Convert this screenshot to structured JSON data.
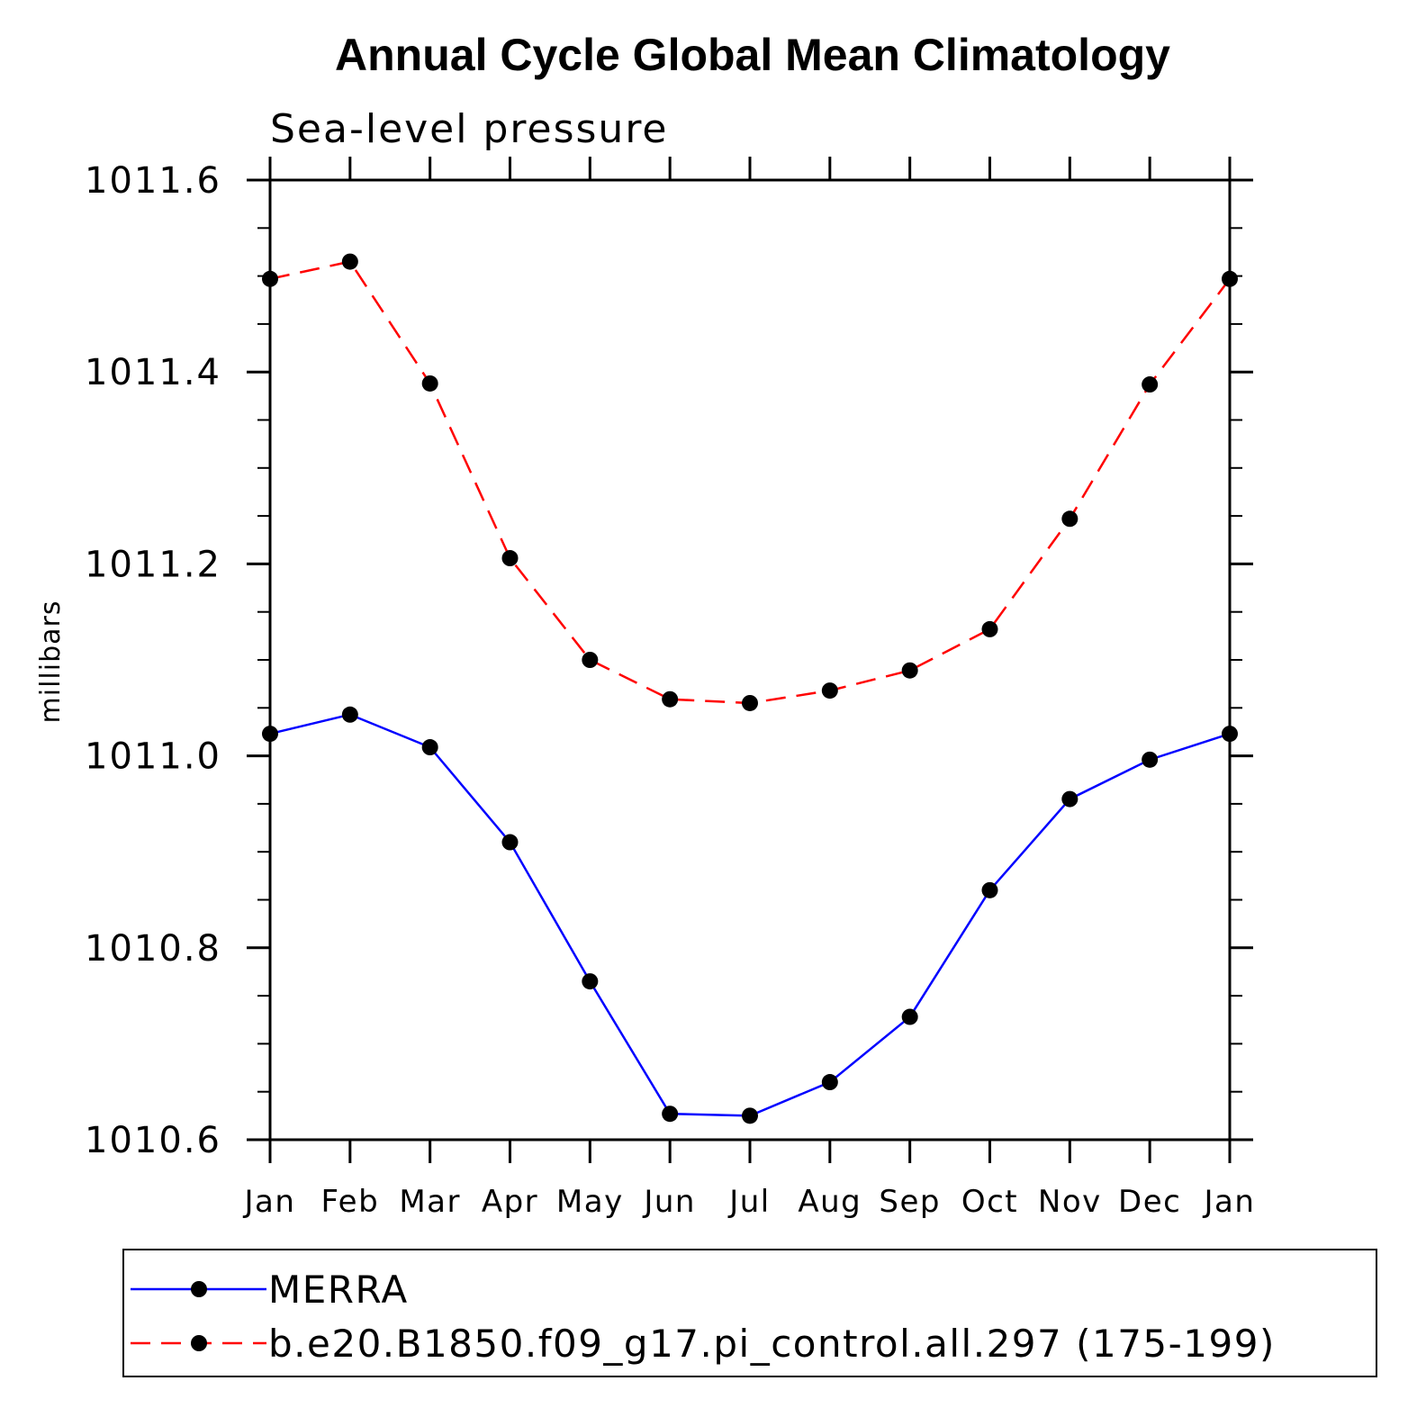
{
  "chart_data": {
    "type": "line",
    "title": "Annual Cycle Global Mean Climatology",
    "subtitle": "Sea-level pressure",
    "ylabel": "millibars",
    "xlabel": "",
    "categories": [
      "Jan",
      "Feb",
      "Mar",
      "Apr",
      "May",
      "Jun",
      "Jul",
      "Aug",
      "Sep",
      "Oct",
      "Nov",
      "Dec",
      "Jan"
    ],
    "ylim": [
      1010.6,
      1011.6
    ],
    "yticks": [
      1010.6,
      1010.8,
      1011.0,
      1011.2,
      1011.4,
      1011.6
    ],
    "ytick_labels": [
      "1010.6",
      "1010.8",
      "1011.0",
      "1011.2",
      "1011.4",
      "1011.6"
    ],
    "grid": false,
    "legend_position": "bottom",
    "series": [
      {
        "name": "MERRA",
        "color": "#0000ff",
        "line_style": "solid",
        "marker": "filled-circle",
        "marker_color": "#000000",
        "values": [
          1011.023,
          1011.043,
          1011.009,
          1010.91,
          1010.765,
          1010.627,
          1010.625,
          1010.66,
          1010.728,
          1010.86,
          1010.955,
          1010.996,
          1011.023
        ]
      },
      {
        "name": "b.e20.B1850.f09_g17.pi_control.all.297 (175-199)",
        "color": "#ff0000",
        "line_style": "dashed",
        "marker": "filled-circle",
        "marker_color": "#000000",
        "values": [
          1011.497,
          1011.515,
          1011.388,
          1011.206,
          1011.1,
          1011.059,
          1011.055,
          1011.068,
          1011.089,
          1011.132,
          1011.247,
          1011.387,
          1011.497
        ]
      }
    ]
  }
}
